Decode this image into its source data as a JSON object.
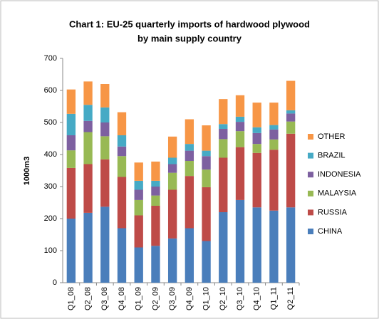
{
  "chart_data": {
    "type": "stacked_bar",
    "title": [
      "Chart 1: EU-25 quarterly imports of hardwood plywood",
      "by main supply country"
    ],
    "y_label": "1000m3",
    "categories": [
      "Q1_08",
      "Q2_08",
      "Q3_08",
      "Q4_08",
      "Q1_09",
      "Q2_09",
      "Q3_09",
      "Q4_09",
      "Q1_10",
      "Q2_10",
      "Q3_10",
      "Q4_10",
      "Q1_11",
      "Q2_11"
    ],
    "series": [
      {
        "name": "CHINA",
        "color": "#4a7ebb",
        "values": [
          200,
          218,
          237,
          170,
          110,
          115,
          138,
          170,
          130,
          220,
          258,
          235,
          225,
          235
        ]
      },
      {
        "name": "RUSSIA",
        "color": "#be4b48",
        "values": [
          158,
          152,
          148,
          160,
          100,
          125,
          152,
          163,
          168,
          170,
          165,
          170,
          190,
          230
        ]
      },
      {
        "name": "MALAYSIA",
        "color": "#98b954",
        "values": [
          55,
          100,
          72,
          65,
          48,
          32,
          53,
          47,
          55,
          58,
          50,
          28,
          32,
          38
        ]
      },
      {
        "name": "INDONESIA",
        "color": "#7d60a0",
        "values": [
          47,
          35,
          43,
          30,
          32,
          28,
          27,
          32,
          42,
          32,
          29,
          34,
          31,
          25
        ]
      },
      {
        "name": "BRAZIL",
        "color": "#46aac5",
        "values": [
          67,
          50,
          47,
          35,
          28,
          18,
          20,
          21,
          17,
          15,
          16,
          18,
          14,
          10
        ]
      },
      {
        "name": "OTHER",
        "color": "#f79646",
        "values": [
          76,
          73,
          73,
          72,
          57,
          60,
          66,
          77,
          79,
          78,
          67,
          77,
          70,
          92
        ]
      }
    ],
    "ylim": [
      0,
      700
    ],
    "yticks": [
      0,
      100,
      200,
      300,
      400,
      500,
      600,
      700
    ],
    "grid": false,
    "legend": "right"
  }
}
